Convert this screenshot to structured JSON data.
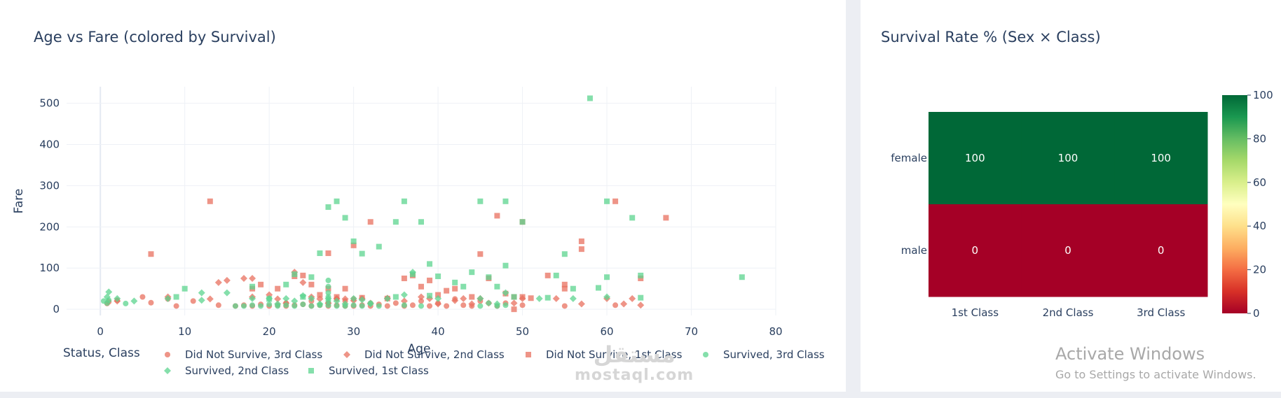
{
  "chart_data": [
    {
      "type": "scatter",
      "title": "Age vs Fare (colored by Survival)",
      "xlabel": "Age",
      "ylabel": "Fare",
      "xlim": [
        -4,
        80
      ],
      "ylim": [
        -15,
        540
      ],
      "x_ticks": [
        0,
        10,
        20,
        30,
        40,
        50,
        60,
        70,
        80
      ],
      "y_ticks": [
        0,
        100,
        200,
        300,
        400,
        500
      ],
      "grid": true,
      "legend_title": "Status, Class",
      "legend_position": "bottom",
      "series": [
        {
          "name": "Did Not Survive, 3rd Class",
          "symbol": "circle",
          "color": "#e8705f",
          "points": [
            [
              0.8,
              14
            ],
            [
              1,
              18
            ],
            [
              2,
              22
            ],
            [
              5,
              30
            ],
            [
              6,
              16
            ],
            [
              8,
              25
            ],
            [
              9,
              8
            ],
            [
              11,
              20
            ],
            [
              14,
              10
            ],
            [
              16,
              8
            ],
            [
              17,
              10
            ],
            [
              18,
              8
            ],
            [
              19,
              12
            ],
            [
              20,
              8
            ],
            [
              21,
              10
            ],
            [
              22,
              15
            ],
            [
              22,
              8
            ],
            [
              23,
              10
            ],
            [
              24,
              12
            ],
            [
              25,
              8
            ],
            [
              25,
              20
            ],
            [
              26,
              10
            ],
            [
              27,
              8
            ],
            [
              27,
              15
            ],
            [
              28,
              10
            ],
            [
              28,
              25
            ],
            [
              29,
              8
            ],
            [
              29,
              20
            ],
            [
              30,
              8
            ],
            [
              30,
              25
            ],
            [
              31,
              10
            ],
            [
              32,
              8
            ],
            [
              33,
              12
            ],
            [
              34,
              8
            ],
            [
              35,
              15
            ],
            [
              36,
              8
            ],
            [
              37,
              10
            ],
            [
              38,
              20
            ],
            [
              39,
              8
            ],
            [
              40,
              15
            ],
            [
              41,
              8
            ],
            [
              42,
              25
            ],
            [
              43,
              10
            ],
            [
              44,
              8
            ],
            [
              45,
              20
            ],
            [
              47,
              8
            ],
            [
              48,
              15
            ],
            [
              50,
              10
            ],
            [
              55,
              8
            ],
            [
              61,
              10
            ]
          ]
        },
        {
          "name": "Did Not Survive, 2nd Class",
          "symbol": "diamond",
          "color": "#e8705f",
          "points": [
            [
              2,
              20
            ],
            [
              8,
              30
            ],
            [
              13,
              25
            ],
            [
              14,
              65
            ],
            [
              15,
              70
            ],
            [
              17,
              75
            ],
            [
              18,
              75
            ],
            [
              18,
              30
            ],
            [
              20,
              35
            ],
            [
              21,
              25
            ],
            [
              22,
              15
            ],
            [
              23,
              90
            ],
            [
              24,
              65
            ],
            [
              25,
              30
            ],
            [
              26,
              25
            ],
            [
              27,
              15
            ],
            [
              28,
              26
            ],
            [
              29,
              25
            ],
            [
              30,
              21
            ],
            [
              31,
              26
            ],
            [
              32,
              15
            ],
            [
              34,
              27
            ],
            [
              36,
              20
            ],
            [
              38,
              30
            ],
            [
              39,
              26
            ],
            [
              40,
              13
            ],
            [
              42,
              21
            ],
            [
              43,
              26
            ],
            [
              44,
              13
            ],
            [
              45,
              26
            ],
            [
              46,
              15
            ],
            [
              49,
              15
            ],
            [
              50,
              26
            ],
            [
              54,
              26
            ],
            [
              57,
              13
            ],
            [
              60,
              26
            ],
            [
              62,
              13
            ],
            [
              63,
              26
            ],
            [
              64,
              10
            ]
          ]
        },
        {
          "name": "Did Not Survive, 1st Class",
          "symbol": "square",
          "color": "#e8705f",
          "points": [
            [
              6,
              134
            ],
            [
              13,
              262
            ],
            [
              18,
              50
            ],
            [
              19,
              60
            ],
            [
              21,
              50
            ],
            [
              23,
              80
            ],
            [
              24,
              82
            ],
            [
              25,
              60
            ],
            [
              26,
              35
            ],
            [
              27,
              136
            ],
            [
              27,
              50
            ],
            [
              28,
              30
            ],
            [
              29,
              50
            ],
            [
              30,
              155
            ],
            [
              31,
              28
            ],
            [
              32,
              212
            ],
            [
              34,
              26
            ],
            [
              36,
              75
            ],
            [
              37,
              82
            ],
            [
              38,
              55
            ],
            [
              39,
              70
            ],
            [
              40,
              35
            ],
            [
              41,
              45
            ],
            [
              42,
              50
            ],
            [
              44,
              30
            ],
            [
              45,
              134
            ],
            [
              46,
              75
            ],
            [
              47,
              227
            ],
            [
              48,
              38
            ],
            [
              49,
              30
            ],
            [
              50,
              212
            ],
            [
              51,
              27
            ],
            [
              53,
              82
            ],
            [
              55,
              60
            ],
            [
              55,
              50
            ],
            [
              57,
              165
            ],
            [
              57,
              146
            ],
            [
              61,
              262
            ],
            [
              64,
              75
            ],
            [
              67,
              222
            ],
            [
              49,
              0
            ],
            [
              50,
              30
            ]
          ]
        },
        {
          "name": "Survived, 3rd Class",
          "symbol": "circle",
          "color": "#5cd48f",
          "points": [
            [
              0.4,
              20
            ],
            [
              0.8,
              15
            ],
            [
              1,
              22
            ],
            [
              3,
              14
            ],
            [
              16,
              8
            ],
            [
              17,
              8
            ],
            [
              18,
              10
            ],
            [
              19,
              8
            ],
            [
              20,
              12
            ],
            [
              21,
              8
            ],
            [
              22,
              10
            ],
            [
              23,
              8
            ],
            [
              24,
              12
            ],
            [
              25,
              8
            ],
            [
              26,
              10
            ],
            [
              27,
              70
            ],
            [
              27,
              55
            ],
            [
              27,
              40
            ],
            [
              27,
              30
            ],
            [
              27,
              20
            ],
            [
              27,
              10
            ],
            [
              28,
              8
            ],
            [
              29,
              8
            ],
            [
              30,
              10
            ],
            [
              31,
              8
            ],
            [
              32,
              15
            ],
            [
              33,
              8
            ],
            [
              36,
              10
            ],
            [
              38,
              8
            ],
            [
              45,
              8
            ],
            [
              46,
              15
            ],
            [
              47,
              8
            ],
            [
              48,
              10
            ]
          ]
        },
        {
          "name": "Survived, 2nd Class",
          "symbol": "diamond",
          "color": "#5cd48f",
          "points": [
            [
              0.8,
              30
            ],
            [
              1,
              42
            ],
            [
              2,
              26
            ],
            [
              4,
              20
            ],
            [
              8,
              26
            ],
            [
              12,
              22
            ],
            [
              12,
              40
            ],
            [
              15,
              40
            ],
            [
              18,
              26
            ],
            [
              20,
              26
            ],
            [
              21,
              13
            ],
            [
              22,
              26
            ],
            [
              23,
              20
            ],
            [
              24,
              33
            ],
            [
              25,
              26
            ],
            [
              26,
              13
            ],
            [
              27,
              26
            ],
            [
              28,
              20
            ],
            [
              29,
              13
            ],
            [
              30,
              26
            ],
            [
              31,
              23
            ],
            [
              32,
              13
            ],
            [
              34,
              26
            ],
            [
              36,
              35
            ],
            [
              37,
              90
            ],
            [
              40,
              26
            ],
            [
              45,
              26
            ],
            [
              47,
              13
            ],
            [
              48,
              40
            ],
            [
              52,
              26
            ],
            [
              56,
              26
            ],
            [
              60,
              30
            ]
          ]
        },
        {
          "name": "Survived, 1st Class",
          "symbol": "square",
          "color": "#5cd48f",
          "points": [
            [
              9,
              30
            ],
            [
              10,
              50
            ],
            [
              18,
              55
            ],
            [
              20,
              25
            ],
            [
              22,
              60
            ],
            [
              23,
              85
            ],
            [
              24,
              30
            ],
            [
              25,
              78
            ],
            [
              26,
              136
            ],
            [
              27,
              248
            ],
            [
              28,
              262
            ],
            [
              29,
              222
            ],
            [
              30,
              165
            ],
            [
              31,
              135
            ],
            [
              33,
              152
            ],
            [
              35,
              212
            ],
            [
              36,
              262
            ],
            [
              37,
              85
            ],
            [
              38,
              212
            ],
            [
              39,
              110
            ],
            [
              40,
              80
            ],
            [
              42,
              65
            ],
            [
              43,
              55
            ],
            [
              44,
              90
            ],
            [
              45,
              262
            ],
            [
              46,
              78
            ],
            [
              47,
              55
            ],
            [
              48,
              262
            ],
            [
              48,
              106
            ],
            [
              49,
              30
            ],
            [
              50,
              212
            ],
            [
              53,
              28
            ],
            [
              54,
              82
            ],
            [
              55,
              134
            ],
            [
              56,
              50
            ],
            [
              58,
              512
            ],
            [
              59,
              52
            ],
            [
              60,
              262
            ],
            [
              60,
              78
            ],
            [
              63,
              222
            ],
            [
              64,
              82
            ],
            [
              64,
              28
            ],
            [
              76,
              78
            ],
            [
              35,
              30
            ],
            [
              39,
              33
            ]
          ]
        }
      ]
    },
    {
      "type": "heatmap",
      "title": "Survival Rate % (Sex × Class)",
      "x": [
        "1st Class",
        "2nd Class",
        "3rd Class"
      ],
      "y": [
        "female",
        "male"
      ],
      "z": [
        [
          100,
          100,
          100
        ],
        [
          0,
          0,
          0
        ]
      ],
      "zlim": [
        0,
        100
      ],
      "colorbar_ticks": [
        0,
        20,
        40,
        60,
        80,
        100
      ],
      "colorscale": [
        "#a50026",
        "#d73027",
        "#f46d43",
        "#fdae61",
        "#fee08b",
        "#ffffbf",
        "#d9ef8b",
        "#a6d96a",
        "#66bd63",
        "#1a9850",
        "#006837"
      ]
    }
  ],
  "watermark": {
    "arabic": "مستقل",
    "latin": "mostaql.com"
  },
  "activation": {
    "line1": "Activate Windows",
    "line2": "Go to Settings to activate Windows."
  }
}
